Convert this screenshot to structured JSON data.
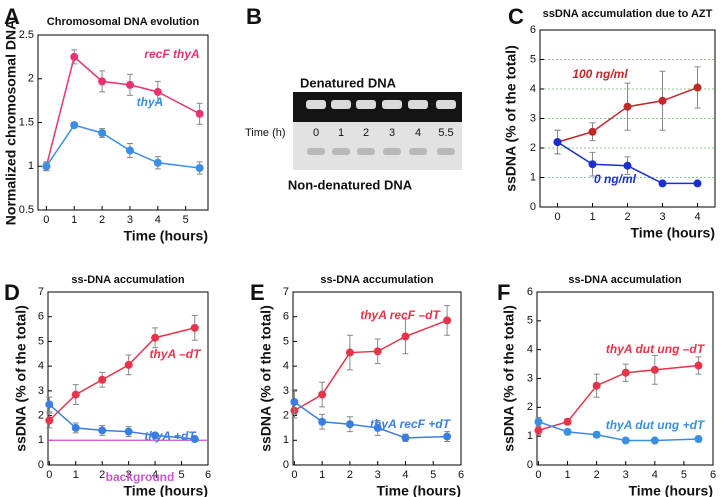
{
  "chart_data": [
    {
      "type": "line",
      "panel": "A",
      "title": "Chromosomal DNA evolution",
      "xlabel": "Time (hours)",
      "ylabel": "Normalized chromosomal DNA",
      "x": [
        0,
        1,
        2,
        3,
        4,
        5.5
      ],
      "xlim": [
        -0.3,
        5.8
      ],
      "xticks": [
        0,
        1,
        2,
        3,
        4,
        5
      ],
      "ylim": [
        0.5,
        2.5
      ],
      "yticks": [
        0.5,
        1,
        1.5,
        2,
        2.5
      ],
      "grid": false,
      "series": [
        {
          "name": "recF thyA",
          "color": "#e8336e",
          "values": [
            1.0,
            2.25,
            1.97,
            1.93,
            1.85,
            1.6
          ],
          "errors": [
            0.05,
            0.08,
            0.12,
            0.12,
            0.12,
            0.12
          ]
        },
        {
          "name": "thyA",
          "color": "#3a8ee6",
          "values": [
            1.0,
            1.47,
            1.38,
            1.18,
            1.04,
            0.98
          ],
          "errors": [
            0.05,
            0.03,
            0.05,
            0.08,
            0.07,
            0.07
          ]
        }
      ]
    },
    {
      "type": "line",
      "panel": "C",
      "title": "ssDNA accumulation due to AZT",
      "xlabel": "Time (hours)",
      "ylabel": "ssDNA (% of the total)",
      "x": [
        0,
        1,
        2,
        3,
        4
      ],
      "xlim": [
        -0.5,
        4.5
      ],
      "xticks": [
        0,
        1,
        2,
        3,
        4
      ],
      "ylim": [
        0,
        6
      ],
      "yticks": [
        0,
        1,
        2,
        3,
        4,
        5,
        6
      ],
      "grid": true,
      "series": [
        {
          "name": "100 ng/ml",
          "color": "#c0282a",
          "values": [
            2.2,
            2.55,
            3.4,
            3.6,
            4.05
          ],
          "errors": [
            0.4,
            0.3,
            0.8,
            1.0,
            0.7
          ]
        },
        {
          "name": "0 ng/ml",
          "color": "#1a2fcf",
          "values": [
            2.2,
            1.45,
            1.4,
            0.8,
            0.8
          ],
          "errors": [
            0.4,
            0.4,
            0.3,
            0,
            0
          ]
        }
      ]
    },
    {
      "type": "line",
      "panel": "D",
      "title": "ss-DNA accumulation",
      "xlabel": "Time (hours)",
      "ylabel": "ssDNA (% of the total)",
      "x": [
        0,
        1,
        2,
        3,
        4,
        5.5
      ],
      "xlim": [
        -0.05,
        6
      ],
      "xticks": [
        0,
        1,
        2,
        3,
        4,
        5,
        6
      ],
      "ylim": [
        0,
        7
      ],
      "yticks": [
        0,
        1,
        2,
        3,
        4,
        5,
        6,
        7
      ],
      "grid": false,
      "series": [
        {
          "name": "thyA –dT",
          "color": "#e8334a",
          "values": [
            1.8,
            2.85,
            3.45,
            4.05,
            5.15,
            5.55
          ],
          "errors": [
            0.3,
            0.4,
            0.3,
            0.4,
            0.4,
            0.5
          ]
        },
        {
          "name": "thyA +dT",
          "color": "#3a7fe0",
          "values": [
            2.45,
            1.5,
            1.4,
            1.35,
            1.2,
            1.05
          ],
          "errors": [
            0.3,
            0.2,
            0.2,
            0.2,
            0.1,
            0.1
          ]
        }
      ],
      "reference_line": {
        "label": "background",
        "value": 1,
        "color": "#cc55cc"
      }
    },
    {
      "type": "line",
      "panel": "E",
      "title": "ss-DNA accumulation",
      "xlabel": "Time (hours)",
      "ylabel": "ssDNA (% of the total)",
      "x": [
        0,
        1,
        2,
        3,
        4,
        5.5
      ],
      "xlim": [
        -0.05,
        6
      ],
      "xticks": [
        0,
        1,
        2,
        3,
        4,
        5,
        6
      ],
      "ylim": [
        0,
        7
      ],
      "yticks": [
        0,
        1,
        2,
        3,
        4,
        5,
        6,
        7
      ],
      "grid": false,
      "series": [
        {
          "name": "thyA recF –dT",
          "color": "#e8334a",
          "values": [
            2.2,
            2.85,
            4.55,
            4.6,
            5.2,
            5.85
          ],
          "errors": [
            0.3,
            0.5,
            0.7,
            0.5,
            0.7,
            0.6
          ]
        },
        {
          "name": "thyA recF +dT",
          "color": "#3a7fe0",
          "values": [
            2.55,
            1.75,
            1.65,
            1.5,
            1.1,
            1.15
          ],
          "errors": [
            0.5,
            0.3,
            0.3,
            0.3,
            0.15,
            0.2
          ]
        }
      ]
    },
    {
      "type": "line",
      "panel": "F",
      "title": "ss-DNA accumulation",
      "xlabel": "Time (hours)",
      "ylabel": "ssDNA (% of the total)",
      "x": [
        0,
        1,
        2,
        3,
        4,
        5.5
      ],
      "xlim": [
        -0.05,
        6
      ],
      "xticks": [
        0,
        1,
        2,
        3,
        4,
        5,
        6
      ],
      "ylim": [
        0,
        6
      ],
      "yticks": [
        0,
        1,
        2,
        3,
        4,
        5,
        6
      ],
      "grid": false,
      "series": [
        {
          "name": "thyA dut ung –dT",
          "color": "#e8334a",
          "values": [
            1.2,
            1.5,
            2.75,
            3.2,
            3.3,
            3.45
          ],
          "errors": [
            0.15,
            0.1,
            0.4,
            0.3,
            0.5,
            0.3
          ]
        },
        {
          "name": "thyA dut ung +dT",
          "color": "#3a90e0",
          "values": [
            1.5,
            1.15,
            1.05,
            0.85,
            0.85,
            0.9
          ],
          "errors": [
            0.15,
            0.1,
            0.1,
            0.05,
            0.05,
            0.1
          ]
        }
      ]
    }
  ],
  "gel": {
    "panel": "B",
    "top_label": "Denatured DNA",
    "bottom_label": "Non-denatured DNA",
    "time_label": "Time (h)",
    "lanes": [
      "0",
      "1",
      "2",
      "3",
      "4",
      "5.5"
    ]
  }
}
